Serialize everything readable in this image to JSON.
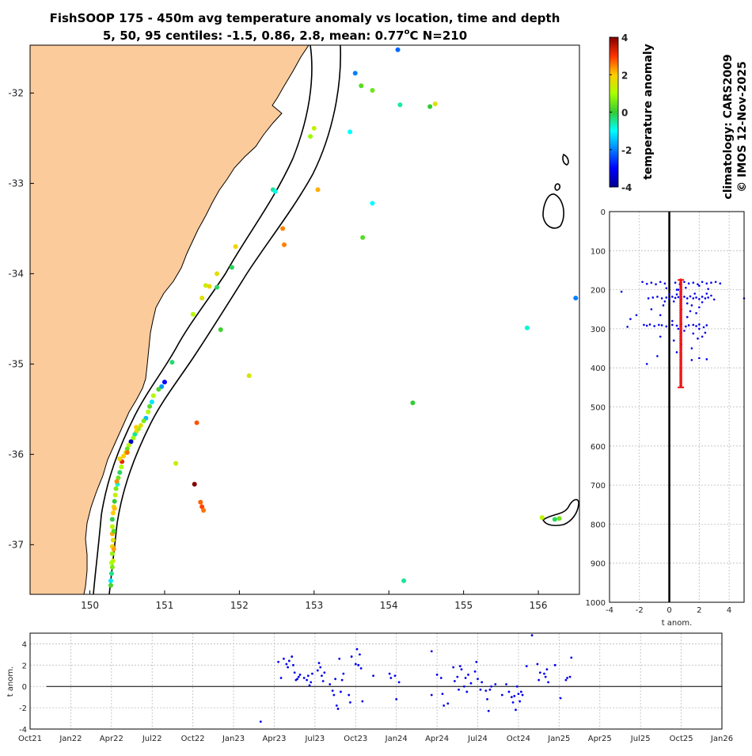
{
  "header": {
    "title_line1": "FishSOOP 175 - 450m avg temperature anomaly vs location, time and depth",
    "title_line2_pre": "5, 50, 95 centiles: -1.5, 0.86, 2.8, mean: 0.77",
    "title_line2_sup": "o",
    "title_line2_post": "C N=210"
  },
  "side_text": {
    "climatology": "climatology: CARS2009",
    "copyright": "© IMOS 12-Nov-2025"
  },
  "colorbar": {
    "label": "temperature anomaly",
    "range": [
      -4,
      4
    ],
    "ticks": [
      "4",
      "2",
      "0",
      "-2",
      "-4"
    ]
  },
  "colors": {
    "land": "#fbcb9b",
    "coast": "#000000",
    "profile_dots": "#0000ee",
    "median_bar": "#ee1111"
  },
  "chart_data": [
    {
      "type": "scatter",
      "name": "map",
      "xlim": [
        149.2,
        156.55
      ],
      "ylim": [
        -37.55,
        -31.47
      ],
      "x_ticks": [
        "150",
        "151",
        "152",
        "153",
        "154",
        "155",
        "156"
      ],
      "y_ticks": [
        "-32",
        "-33",
        "-34",
        "-35",
        "-36",
        "-37"
      ],
      "points": [
        [
          154.12,
          -31.52,
          -2.2
        ],
        [
          153.55,
          -31.78,
          -2.0
        ],
        [
          153.63,
          -31.92,
          0.3
        ],
        [
          153.78,
          -31.97,
          0.5
        ],
        [
          154.15,
          -32.13,
          -0.6
        ],
        [
          154.55,
          -32.15,
          0.0
        ],
        [
          154.62,
          -32.12,
          1.6
        ],
        [
          153.48,
          -32.43,
          -1.0
        ],
        [
          153.0,
          -32.39,
          1.3
        ],
        [
          152.95,
          -32.48,
          0.9
        ],
        [
          153.05,
          -33.07,
          2.2
        ],
        [
          152.45,
          -33.07,
          -0.5
        ],
        [
          152.48,
          -33.09,
          -0.9
        ],
        [
          153.78,
          -33.22,
          -1.0
        ],
        [
          152.58,
          -33.5,
          2.5
        ],
        [
          152.6,
          -33.68,
          2.5
        ],
        [
          153.65,
          -33.6,
          0.3
        ],
        [
          151.95,
          -33.7,
          1.8
        ],
        [
          151.9,
          -33.93,
          -0.2
        ],
        [
          151.7,
          -34.0,
          1.7
        ],
        [
          151.55,
          -34.13,
          1.4
        ],
        [
          151.6,
          -34.14,
          1.7
        ],
        [
          151.7,
          -34.15,
          -0.2
        ],
        [
          151.5,
          -34.27,
          1.6
        ],
        [
          151.38,
          -34.45,
          1.1
        ],
        [
          151.75,
          -34.62,
          0.1
        ],
        [
          155.85,
          -34.6,
          -0.8
        ],
        [
          156.5,
          -34.27,
          -2.0
        ],
        [
          151.1,
          -34.98,
          -0.3
        ],
        [
          152.13,
          -35.13,
          1.5
        ],
        [
          154.32,
          -35.43,
          0.0
        ],
        [
          151.43,
          -35.65,
          2.8
        ],
        [
          151.15,
          -36.1,
          1.4
        ],
        [
          151.4,
          -36.33,
          4.8
        ],
        [
          151.48,
          -36.53,
          2.7
        ],
        [
          151.5,
          -36.58,
          2.9
        ],
        [
          151.52,
          -36.62,
          2.6
        ],
        [
          156.05,
          -36.7,
          1.2
        ],
        [
          156.22,
          -36.72,
          -0.2
        ],
        [
          156.28,
          -36.71,
          0.5
        ],
        [
          154.2,
          -37.4,
          -0.5
        ],
        [
          151.0,
          -35.2,
          -3.0
        ],
        [
          150.96,
          -35.25,
          -1.8
        ],
        [
          150.92,
          -35.28,
          0.2
        ],
        [
          150.85,
          -35.35,
          1.1
        ],
        [
          150.83,
          -35.42,
          -1.2
        ],
        [
          150.8,
          -35.47,
          0.3
        ],
        [
          150.78,
          -35.53,
          1.0
        ],
        [
          150.75,
          -35.6,
          -1.5
        ],
        [
          150.72,
          -35.63,
          0.6
        ],
        [
          150.68,
          -35.68,
          1.6
        ],
        [
          150.65,
          -35.72,
          0.8
        ],
        [
          150.62,
          -35.75,
          1.7
        ],
        [
          150.6,
          -35.78,
          -0.5
        ],
        [
          150.58,
          -35.82,
          0.9
        ],
        [
          150.55,
          -35.86,
          -3.5
        ],
        [
          150.52,
          -35.9,
          1.2
        ],
        [
          150.5,
          -35.94,
          0.4
        ],
        [
          150.48,
          -35.98,
          1.5
        ],
        [
          150.45,
          -36.02,
          2.0
        ],
        [
          150.43,
          -36.08,
          3.2
        ],
        [
          150.42,
          -36.14,
          1.0
        ],
        [
          150.4,
          -36.2,
          -0.2
        ],
        [
          150.38,
          -36.26,
          0.5
        ],
        [
          150.37,
          -36.33,
          -0.8
        ],
        [
          150.35,
          -36.38,
          0.6
        ],
        [
          150.34,
          -36.45,
          1.3
        ],
        [
          150.33,
          -36.52,
          0.0
        ],
        [
          150.32,
          -36.58,
          1.7
        ],
        [
          150.31,
          -36.65,
          2.0
        ],
        [
          150.3,
          -36.72,
          -0.1
        ],
        [
          150.3,
          -36.8,
          1.2
        ],
        [
          150.3,
          -36.88,
          2.2
        ],
        [
          150.31,
          -36.95,
          1.6
        ],
        [
          150.3,
          -37.02,
          1.9
        ],
        [
          150.3,
          -37.1,
          0.8
        ],
        [
          150.31,
          -37.18,
          1.4
        ],
        [
          150.3,
          -37.25,
          0.6
        ],
        [
          150.29,
          -37.32,
          -0.4
        ],
        [
          150.28,
          -37.4,
          -1.2
        ],
        [
          150.28,
          -37.45,
          0.2
        ],
        [
          150.4,
          -36.05,
          1.8
        ],
        [
          150.36,
          -36.3,
          2.4
        ],
        [
          150.33,
          -36.6,
          2.1
        ],
        [
          150.32,
          -36.85,
          0.3
        ],
        [
          150.32,
          -37.05,
          2.3
        ],
        [
          150.29,
          -37.2,
          1.0
        ],
        [
          150.5,
          -35.98,
          2.6
        ],
        [
          150.62,
          -35.7,
          1.9
        ]
      ]
    },
    {
      "type": "scatter",
      "name": "depth_profile",
      "xlabel": "t anom.",
      "xlim": [
        -4,
        5
      ],
      "ylim": [
        0,
        1000
      ],
      "x_ticks": [
        "-4",
        "-2",
        "0",
        "2",
        "4"
      ],
      "y_ticks": [
        "0",
        "100",
        "200",
        "300",
        "400",
        "500",
        "600",
        "700",
        "800",
        "900",
        "1000"
      ],
      "median_bar": {
        "x": 0.77,
        "y_from": 175,
        "y_to": 450
      },
      "points": [
        [
          -3.2,
          205
        ],
        [
          -1.8,
          180
        ],
        [
          -1.5,
          185
        ],
        [
          -1.2,
          182
        ],
        [
          -0.9,
          186
        ],
        [
          -0.6,
          180
        ],
        [
          -0.3,
          184
        ],
        [
          0.4,
          182
        ],
        [
          0.7,
          186
        ],
        [
          1.0,
          180
        ],
        [
          1.3,
          184
        ],
        [
          1.6,
          182
        ],
        [
          1.9,
          186
        ],
        [
          2.2,
          180
        ],
        [
          2.5,
          184
        ],
        [
          2.8,
          182
        ],
        [
          3.1,
          180
        ],
        [
          3.4,
          184
        ],
        [
          2.0,
          190
        ],
        [
          1.1,
          195
        ],
        [
          0.5,
          200
        ],
        [
          -0.2,
          196
        ],
        [
          2.6,
          198
        ],
        [
          -1.4,
          222
        ],
        [
          -1.1,
          220
        ],
        [
          -0.8,
          218
        ],
        [
          -0.5,
          222
        ],
        [
          -0.2,
          220
        ],
        [
          0.0,
          223
        ],
        [
          0.2,
          218
        ],
        [
          0.4,
          221
        ],
        [
          0.6,
          219
        ],
        [
          0.8,
          224
        ],
        [
          1.0,
          218
        ],
        [
          1.2,
          222
        ],
        [
          1.4,
          217
        ],
        [
          1.6,
          222
        ],
        [
          1.8,
          220
        ],
        [
          2.0,
          224
        ],
        [
          2.2,
          218
        ],
        [
          2.4,
          222
        ],
        [
          2.6,
          220
        ],
        [
          2.8,
          215
        ],
        [
          3.0,
          225
        ],
        [
          0.3,
          230
        ],
        [
          1.2,
          235
        ],
        [
          2.2,
          232
        ],
        [
          2.5,
          210
        ],
        [
          -0.3,
          230
        ],
        [
          1.5,
          240
        ],
        [
          2.0,
          245
        ],
        [
          0.0,
          212
        ],
        [
          0.5,
          212
        ],
        [
          5.0,
          222
        ],
        [
          1.7,
          210
        ],
        [
          -2.6,
          275
        ],
        [
          -2.8,
          295
        ],
        [
          -2.2,
          265
        ],
        [
          -1.7,
          290
        ],
        [
          -1.5,
          292
        ],
        [
          -1.3,
          289
        ],
        [
          -1.0,
          293
        ],
        [
          -0.7,
          290
        ],
        [
          -0.5,
          291
        ],
        [
          -0.2,
          294
        ],
        [
          0.2,
          290
        ],
        [
          0.5,
          292
        ],
        [
          0.8,
          288
        ],
        [
          1.1,
          294
        ],
        [
          1.3,
          291
        ],
        [
          1.6,
          290
        ],
        [
          1.8,
          293
        ],
        [
          2.0,
          289
        ],
        [
          2.3,
          296
        ],
        [
          2.5,
          291
        ],
        [
          1.0,
          305
        ],
        [
          1.6,
          312
        ],
        [
          1.9,
          325
        ],
        [
          2.2,
          320
        ],
        [
          2.0,
          300
        ],
        [
          2.4,
          310
        ],
        [
          0.6,
          300
        ],
        [
          -0.6,
          320
        ],
        [
          0.8,
          340
        ],
        [
          1.5,
          350
        ],
        [
          -1.5,
          390
        ],
        [
          -0.8,
          370
        ],
        [
          0.5,
          360
        ],
        [
          0.8,
          250
        ],
        [
          1.4,
          255
        ],
        [
          -1.2,
          250
        ],
        [
          -0.6,
          265
        ],
        [
          1.5,
          380
        ],
        [
          2.0,
          375
        ],
        [
          2.5,
          378
        ],
        [
          0.2,
          280
        ],
        [
          1.2,
          270
        ],
        [
          0.6,
          200
        ],
        [
          -0.4,
          240
        ],
        [
          1.8,
          260
        ],
        [
          0.3,
          330
        ]
      ]
    },
    {
      "type": "scatter",
      "name": "time_series",
      "ylabel": "t anom.",
      "ylim": [
        -4,
        5
      ],
      "x_ticks": [
        "Oct21",
        "Jan22",
        "Apr22",
        "Jul22",
        "Oct22",
        "Jan23",
        "Apr23",
        "Jul23",
        "Oct23",
        "Jan24",
        "Apr24",
        "Jul24",
        "Oct24",
        "Jan25",
        "Apr25",
        "Jul25",
        "Oct25",
        "Jan26"
      ],
      "y_ticks": [
        "4",
        "2",
        "0",
        "-2",
        "-4"
      ],
      "points": [
        [
          17.0,
          -3.3
        ],
        [
          18.3,
          2.3
        ],
        [
          18.5,
          0.8
        ],
        [
          18.7,
          2.6
        ],
        [
          18.9,
          2.1
        ],
        [
          19.0,
          1.8
        ],
        [
          19.1,
          2.4
        ],
        [
          19.3,
          2.8
        ],
        [
          19.4,
          2.0
        ],
        [
          19.5,
          1.3
        ],
        [
          19.6,
          0.6
        ],
        [
          19.7,
          0.7
        ],
        [
          19.8,
          0.9
        ],
        [
          19.9,
          1.1
        ],
        [
          20.2,
          0.8
        ],
        [
          20.4,
          0.6
        ],
        [
          20.5,
          1.0
        ],
        [
          20.6,
          0.1
        ],
        [
          20.7,
          0.4
        ],
        [
          20.8,
          1.2
        ],
        [
          21.2,
          1.5
        ],
        [
          21.3,
          2.2
        ],
        [
          21.4,
          1.8
        ],
        [
          21.5,
          1.0
        ],
        [
          21.6,
          0.5
        ],
        [
          21.7,
          1.3
        ],
        [
          22.1,
          0.2
        ],
        [
          22.3,
          -0.4
        ],
        [
          22.4,
          -0.8
        ],
        [
          22.5,
          0.7
        ],
        [
          22.6,
          -1.8
        ],
        [
          22.7,
          -2.1
        ],
        [
          22.8,
          2.6
        ],
        [
          22.9,
          -0.5
        ],
        [
          23.0,
          0.6
        ],
        [
          23.1,
          1.2
        ],
        [
          23.5,
          -0.8
        ],
        [
          23.6,
          -1.5
        ],
        [
          23.7,
          2.8
        ],
        [
          24.0,
          2.1
        ],
        [
          24.1,
          3.5
        ],
        [
          24.2,
          2.0
        ],
        [
          24.3,
          3.0
        ],
        [
          24.4,
          1.7
        ],
        [
          24.5,
          -1.4
        ],
        [
          25.3,
          1.0
        ],
        [
          26.5,
          1.2
        ],
        [
          26.6,
          0.8
        ],
        [
          26.9,
          1.0
        ],
        [
          27.0,
          -1.2
        ],
        [
          27.2,
          0.4
        ],
        [
          29.6,
          3.3
        ],
        [
          29.6,
          -0.8
        ],
        [
          30.0,
          1.1
        ],
        [
          30.3,
          0.8
        ],
        [
          30.4,
          -0.7
        ],
        [
          30.5,
          -1.8
        ],
        [
          30.8,
          -1.6
        ],
        [
          31.2,
          1.8
        ],
        [
          31.3,
          0.5
        ],
        [
          31.5,
          0.9
        ],
        [
          31.6,
          -0.3
        ],
        [
          31.7,
          1.9
        ],
        [
          31.8,
          1.6
        ],
        [
          32.0,
          0.0
        ],
        [
          32.1,
          0.8
        ],
        [
          32.2,
          -0.5
        ],
        [
          32.3,
          1.1
        ],
        [
          32.5,
          0.3
        ],
        [
          32.8,
          1.4
        ],
        [
          32.9,
          2.3
        ],
        [
          33.0,
          0.7
        ],
        [
          33.2,
          -0.3
        ],
        [
          33.3,
          0.4
        ],
        [
          33.6,
          -0.4
        ],
        [
          33.7,
          -1.2
        ],
        [
          33.8,
          -2.3
        ],
        [
          33.9,
          -0.3
        ],
        [
          34.0,
          0.0
        ],
        [
          34.3,
          0.2
        ],
        [
          34.8,
          -0.8
        ],
        [
          35.1,
          0.2
        ],
        [
          35.3,
          -0.5
        ],
        [
          35.5,
          -1.0
        ],
        [
          35.6,
          -1.5
        ],
        [
          35.7,
          -0.9
        ],
        [
          35.8,
          -2.2
        ],
        [
          35.9,
          0.0
        ],
        [
          36.0,
          -0.7
        ],
        [
          36.1,
          -1.4
        ],
        [
          36.2,
          -0.5
        ],
        [
          36.3,
          -0.8
        ],
        [
          36.6,
          1.9
        ],
        [
          37.0,
          4.8
        ],
        [
          37.4,
          2.1
        ],
        [
          37.5,
          0.6
        ],
        [
          37.6,
          1.3
        ],
        [
          37.9,
          1.2
        ],
        [
          38.0,
          0.9
        ],
        [
          38.1,
          1.6
        ],
        [
          38.2,
          0.4
        ],
        [
          38.7,
          2.0
        ],
        [
          39.1,
          -1.1
        ],
        [
          39.5,
          0.6
        ],
        [
          39.6,
          0.8
        ],
        [
          39.8,
          0.9
        ],
        [
          39.9,
          2.7
        ]
      ]
    }
  ]
}
